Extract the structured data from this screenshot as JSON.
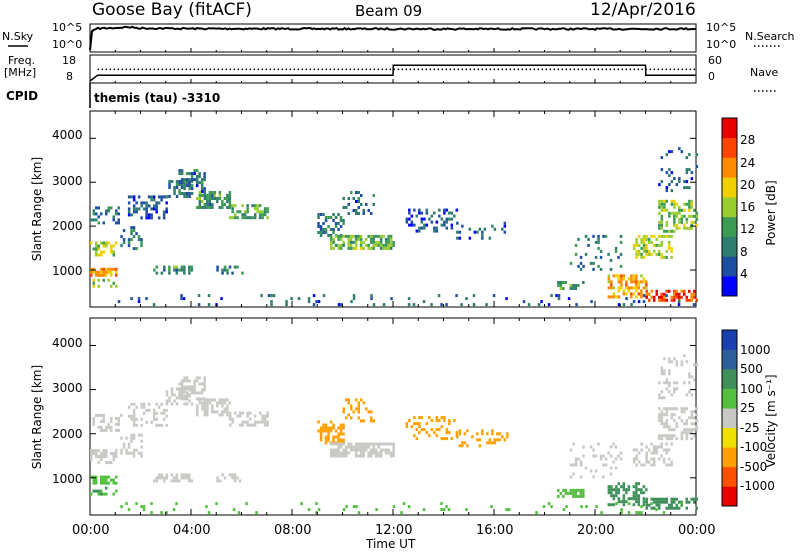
{
  "header": {
    "radar": "Goose Bay (fitACF)",
    "beam": "Beam 09",
    "date": "12/Apr/2016"
  },
  "sky_panel": {
    "left_label": "N.Sky",
    "left_ticks": [
      "10^5",
      "10^0"
    ],
    "right_label": "N.Search",
    "right_ticks": [
      "10^5",
      "10^0"
    ]
  },
  "freq_panel": {
    "left_label_1": "Freq.",
    "left_label_2": "[MHz]",
    "left_ticks": [
      "18",
      "8"
    ],
    "right_label": "Nave",
    "right_ticks": [
      "60",
      "0"
    ]
  },
  "cpid": {
    "label": "CPID",
    "value": "themis (tau) -3310"
  },
  "power_panel": {
    "ylabel": "Slant Range [km]",
    "yticks": [
      "4000",
      "3000",
      "2000",
      "1000"
    ],
    "colorbar_label": "Power [dB]",
    "colorbar_ticks": [
      "28",
      "24",
      "20",
      "16",
      "12",
      "8",
      "4"
    ]
  },
  "velocity_panel": {
    "ylabel": "Slant Range [km]",
    "yticks": [
      "4000",
      "3000",
      "2000",
      "1000"
    ],
    "colorbar_label": "Velocity [m s⁻¹]",
    "colorbar_ticks": [
      "1000",
      "500",
      "100",
      "25",
      "-25",
      "-100",
      "-500",
      "-1000"
    ]
  },
  "xaxis": {
    "ticks": [
      "00:00",
      "04:00",
      "08:00",
      "12:00",
      "16:00",
      "20:00",
      "00:00"
    ],
    "label": "Time UT"
  },
  "colors": {
    "power_scale": [
      "#0000ff",
      "#1f4fa0",
      "#2e7d6e",
      "#3d9a55",
      "#9acd32",
      "#f0d000",
      "#ff8c00",
      "#ff4500",
      "#e60000"
    ],
    "velocity_scale": [
      "#1a3fae",
      "#2e5f9a",
      "#3e8f5a",
      "#55c040",
      "#c8c8c4",
      "#f0e000",
      "#ffa000",
      "#ff5000",
      "#e60000"
    ]
  },
  "chart_data": [
    {
      "type": "line",
      "title": "N.Sky / N.Search",
      "x_range_hours": [
        0,
        24
      ],
      "y_scale": "log",
      "ylim": [
        1,
        100000
      ],
      "series": [
        {
          "name": "N.Sky",
          "x": [
            0,
            0.3,
            1,
            1.5,
            2,
            4,
            8,
            12,
            16,
            20,
            22,
            24
          ],
          "y": [
            1,
            30000,
            40000,
            60000,
            35000,
            28000,
            26000,
            25000,
            24000,
            24000,
            25000,
            26000
          ]
        }
      ]
    },
    {
      "type": "line",
      "title": "Freq. / Nave",
      "x_range_hours": [
        0,
        24
      ],
      "ylim": [
        8,
        18
      ],
      "series": [
        {
          "name": "Freq. [MHz]",
          "x": [
            0,
            0.3,
            12,
            12.01,
            22,
            22.01,
            24
          ],
          "y": [
            8,
            10.4,
            10.4,
            14.6,
            14.6,
            10.4,
            10.4
          ]
        },
        {
          "name": "Nave",
          "x": [
            0.3,
            24
          ],
          "y": [
            17,
            17
          ]
        }
      ]
    },
    {
      "type": "heatmap",
      "title": "Power [dB]",
      "x_range_hours": [
        0,
        24
      ],
      "ylim": [
        180,
        4600
      ],
      "colorbar_range": [
        0,
        30
      ],
      "regions": [
        {
          "t0": 0.0,
          "t1": 1.2,
          "r0": 2050,
          "r1": 2450,
          "v": 8,
          "d": 0.35
        },
        {
          "t0": 0.0,
          "t1": 1.0,
          "r0": 1350,
          "r1": 1650,
          "v": 16,
          "d": 0.6
        },
        {
          "t0": 0.0,
          "t1": 1.0,
          "r0": 850,
          "r1": 1050,
          "v": 22,
          "d": 0.7
        },
        {
          "t0": 0.0,
          "t1": 1.0,
          "r0": 650,
          "r1": 800,
          "v": 14,
          "d": 0.5
        },
        {
          "t0": 1.2,
          "t1": 2.0,
          "r0": 1500,
          "r1": 2000,
          "v": 8,
          "d": 0.35
        },
        {
          "t0": 1.5,
          "t1": 3.0,
          "r0": 2200,
          "r1": 2700,
          "v": 6,
          "d": 0.45
        },
        {
          "t0": 3.0,
          "t1": 4.0,
          "r0": 2650,
          "r1": 3050,
          "v": 8,
          "d": 0.55
        },
        {
          "t0": 3.5,
          "t1": 4.5,
          "r0": 2800,
          "r1": 3300,
          "v": 7,
          "d": 0.55
        },
        {
          "t0": 4.2,
          "t1": 5.5,
          "r0": 2400,
          "r1": 2800,
          "v": 10,
          "d": 0.6
        },
        {
          "t0": 5.5,
          "t1": 7.0,
          "r0": 2200,
          "r1": 2500,
          "v": 12,
          "d": 0.6
        },
        {
          "t0": 2.5,
          "t1": 4.0,
          "r0": 900,
          "r1": 1100,
          "v": 10,
          "d": 0.6
        },
        {
          "t0": 5.0,
          "t1": 6.0,
          "r0": 900,
          "r1": 1100,
          "v": 9,
          "d": 0.5
        },
        {
          "t0": 9.0,
          "t1": 10.0,
          "r0": 1800,
          "r1": 2300,
          "v": 9,
          "d": 0.5
        },
        {
          "t0": 9.5,
          "t1": 12.0,
          "r0": 1500,
          "r1": 1800,
          "v": 13,
          "d": 0.75
        },
        {
          "t0": 10.0,
          "t1": 11.2,
          "r0": 2300,
          "r1": 2800,
          "v": 7,
          "d": 0.3
        },
        {
          "t0": 12.5,
          "t1": 14.5,
          "r0": 1900,
          "r1": 2400,
          "v": 6,
          "d": 0.3
        },
        {
          "t0": 14.5,
          "t1": 16.5,
          "r0": 1700,
          "r1": 2100,
          "v": 6,
          "d": 0.2
        },
        {
          "t0": 18.5,
          "t1": 19.5,
          "r0": 550,
          "r1": 750,
          "v": 10,
          "d": 0.6
        },
        {
          "t0": 19.0,
          "t1": 21.0,
          "r0": 1000,
          "r1": 1800,
          "v": 8,
          "d": 0.15
        },
        {
          "t0": 20.5,
          "t1": 22.0,
          "r0": 400,
          "r1": 900,
          "v": 20,
          "d": 0.5
        },
        {
          "t0": 22.0,
          "t1": 24.0,
          "r0": 300,
          "r1": 550,
          "v": 26,
          "d": 0.6
        },
        {
          "t0": 21.5,
          "t1": 23.0,
          "r0": 1300,
          "r1": 1800,
          "v": 16,
          "d": 0.5
        },
        {
          "t0": 22.5,
          "t1": 24.0,
          "r0": 1900,
          "r1": 2600,
          "v": 14,
          "d": 0.5
        },
        {
          "t0": 22.5,
          "t1": 24.0,
          "r0": 2800,
          "r1": 3800,
          "v": 6,
          "d": 0.15
        },
        {
          "t0": 1.0,
          "t1": 24.0,
          "r0": 200,
          "r1": 450,
          "v": 6,
          "d": 0.08
        }
      ]
    },
    {
      "type": "heatmap",
      "title": "Velocity [m s⁻¹]",
      "x_range_hours": [
        0,
        24
      ],
      "ylim": [
        180,
        4600
      ],
      "colorbar_range": [
        -1000,
        1000
      ],
      "regions": [
        {
          "t0": 0.0,
          "t1": 1.2,
          "r0": 2050,
          "r1": 2450,
          "v": 0,
          "d": 0.35
        },
        {
          "t0": 0.0,
          "t1": 1.0,
          "r0": 1350,
          "r1": 1650,
          "v": 0,
          "d": 0.6
        },
        {
          "t0": 0.0,
          "t1": 1.0,
          "r0": 850,
          "r1": 1050,
          "v": 80,
          "d": 0.7
        },
        {
          "t0": 0.0,
          "t1": 1.0,
          "r0": 650,
          "r1": 800,
          "v": 100,
          "d": 0.5
        },
        {
          "t0": 1.2,
          "t1": 2.0,
          "r0": 1500,
          "r1": 2000,
          "v": 0,
          "d": 0.35
        },
        {
          "t0": 1.5,
          "t1": 3.0,
          "r0": 2200,
          "r1": 2700,
          "v": 0,
          "d": 0.45
        },
        {
          "t0": 3.0,
          "t1": 4.0,
          "r0": 2650,
          "r1": 3050,
          "v": 0,
          "d": 0.55
        },
        {
          "t0": 3.5,
          "t1": 4.5,
          "r0": 2800,
          "r1": 3300,
          "v": 0,
          "d": 0.55
        },
        {
          "t0": 4.2,
          "t1": 5.5,
          "r0": 2400,
          "r1": 2800,
          "v": 0,
          "d": 0.6
        },
        {
          "t0": 5.5,
          "t1": 7.0,
          "r0": 2200,
          "r1": 2500,
          "v": 0,
          "d": 0.6
        },
        {
          "t0": 2.5,
          "t1": 4.0,
          "r0": 900,
          "r1": 1100,
          "v": 0,
          "d": 0.6
        },
        {
          "t0": 5.0,
          "t1": 6.0,
          "r0": 900,
          "r1": 1100,
          "v": 0,
          "d": 0.5
        },
        {
          "t0": 9.0,
          "t1": 10.0,
          "r0": 1800,
          "r1": 2300,
          "v": -150,
          "d": 0.5
        },
        {
          "t0": 9.5,
          "t1": 12.0,
          "r0": 1500,
          "r1": 1800,
          "v": 0,
          "d": 0.75
        },
        {
          "t0": 10.0,
          "t1": 11.2,
          "r0": 2300,
          "r1": 2800,
          "v": -300,
          "d": 0.3
        },
        {
          "t0": 12.5,
          "t1": 14.5,
          "r0": 1900,
          "r1": 2400,
          "v": -400,
          "d": 0.3
        },
        {
          "t0": 14.5,
          "t1": 16.5,
          "r0": 1700,
          "r1": 2100,
          "v": -200,
          "d": 0.2
        },
        {
          "t0": 18.5,
          "t1": 19.5,
          "r0": 550,
          "r1": 750,
          "v": 50,
          "d": 0.6
        },
        {
          "t0": 19.0,
          "t1": 21.0,
          "r0": 1000,
          "r1": 1800,
          "v": 0,
          "d": 0.15
        },
        {
          "t0": 20.5,
          "t1": 22.0,
          "r0": 400,
          "r1": 900,
          "v": 120,
          "d": 0.5
        },
        {
          "t0": 22.0,
          "t1": 24.0,
          "r0": 300,
          "r1": 550,
          "v": 150,
          "d": 0.6
        },
        {
          "t0": 21.5,
          "t1": 23.0,
          "r0": 1300,
          "r1": 1800,
          "v": 0,
          "d": 0.5
        },
        {
          "t0": 22.5,
          "t1": 24.0,
          "r0": 1900,
          "r1": 2600,
          "v": 0,
          "d": 0.5
        },
        {
          "t0": 22.5,
          "t1": 24.0,
          "r0": 2800,
          "r1": 3800,
          "v": 0,
          "d": 0.15
        },
        {
          "t0": 1.0,
          "t1": 24.0,
          "r0": 200,
          "r1": 450,
          "v": 60,
          "d": 0.08
        }
      ]
    }
  ]
}
